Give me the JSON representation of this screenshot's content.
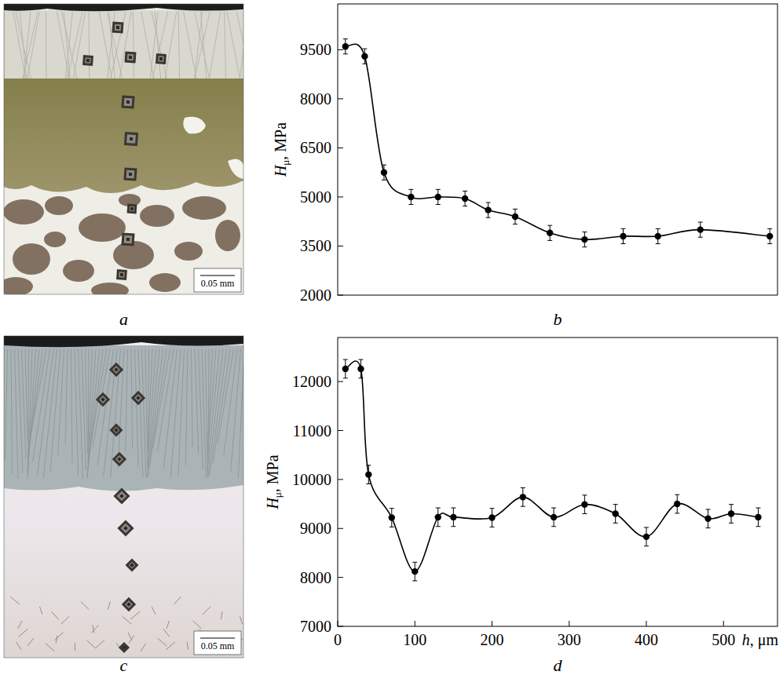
{
  "chart_data": [
    {
      "type": "line",
      "panel": "b",
      "ylabel": "Hμ, MPa",
      "x": [
        10,
        35,
        60,
        95,
        130,
        165,
        195,
        230,
        275,
        320,
        370,
        415,
        470,
        560
      ],
      "values": [
        9600,
        9300,
        5750,
        5000,
        5000,
        4950,
        4600,
        4400,
        3900,
        3700,
        3800,
        3800,
        4000,
        3800
      ],
      "errors": [
        230,
        230,
        230,
        230,
        230,
        230,
        230,
        230,
        230,
        230,
        230,
        230,
        230,
        230
      ],
      "xlim": [
        0,
        570
      ],
      "ylim": [
        2000,
        10900
      ],
      "yticks": [
        2000,
        3500,
        5000,
        6500,
        8000,
        9500
      ],
      "tick_labels": "y",
      "marker": "circle",
      "line_style": "solid",
      "color": "#000000",
      "grid": false
    },
    {
      "type": "line",
      "panel": "d",
      "ylabel": "Hμ, MPa",
      "xlabel": "h, μm",
      "x": [
        10,
        30,
        40,
        70,
        100,
        130,
        150,
        200,
        240,
        280,
        320,
        360,
        400,
        440,
        480,
        510,
        545
      ],
      "values": [
        12260,
        12260,
        10100,
        9220,
        8120,
        9230,
        9230,
        9220,
        9640,
        9230,
        9490,
        9300,
        8830,
        9500,
        9200,
        9300,
        9230
      ],
      "errors": [
        190,
        190,
        190,
        190,
        190,
        190,
        190,
        190,
        190,
        190,
        190,
        190,
        190,
        190,
        190,
        190,
        190
      ],
      "xlim": [
        0,
        570
      ],
      "ylim": [
        7000,
        12900
      ],
      "xticks": [
        0,
        100,
        200,
        300,
        400,
        500
      ],
      "yticks": [
        7000,
        8000,
        9000,
        10000,
        11000,
        12000
      ],
      "marker": "circle",
      "line_style": "solid",
      "color": "#000000",
      "grid": false
    }
  ],
  "micrographs": [
    {
      "panel": "a",
      "scale_bar": "0.05 mm"
    },
    {
      "panel": "c",
      "scale_bar": "0.05 mm"
    }
  ]
}
